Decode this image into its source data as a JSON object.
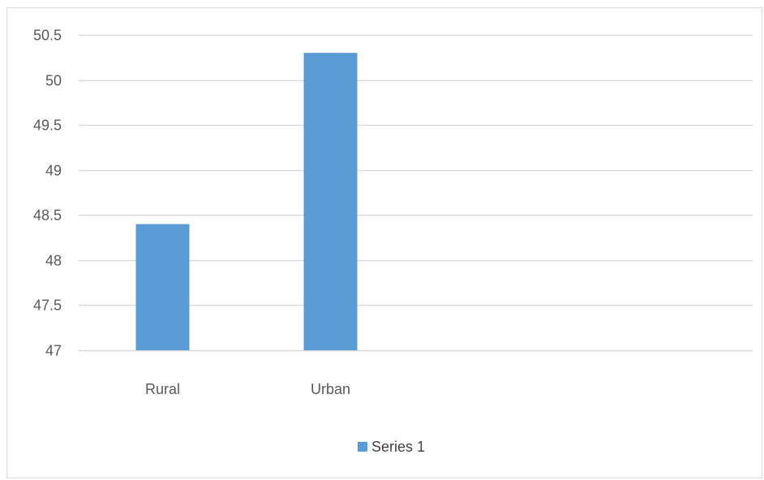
{
  "chart_data": {
    "type": "bar",
    "categories": [
      "Rural",
      "Urban"
    ],
    "series": [
      {
        "name": "Series 1",
        "values": [
          48.4,
          50.3
        ],
        "color": "#5b9bd5"
      }
    ],
    "yticks": [
      "47",
      "47.5",
      "48",
      "48.5",
      "49",
      "49.5",
      "50",
      "50.5"
    ],
    "ylim": [
      47,
      50.5
    ],
    "grid": true,
    "legend_position": "bottom",
    "gridline_color": "#d9d9d9",
    "text_color": "#595959"
  }
}
